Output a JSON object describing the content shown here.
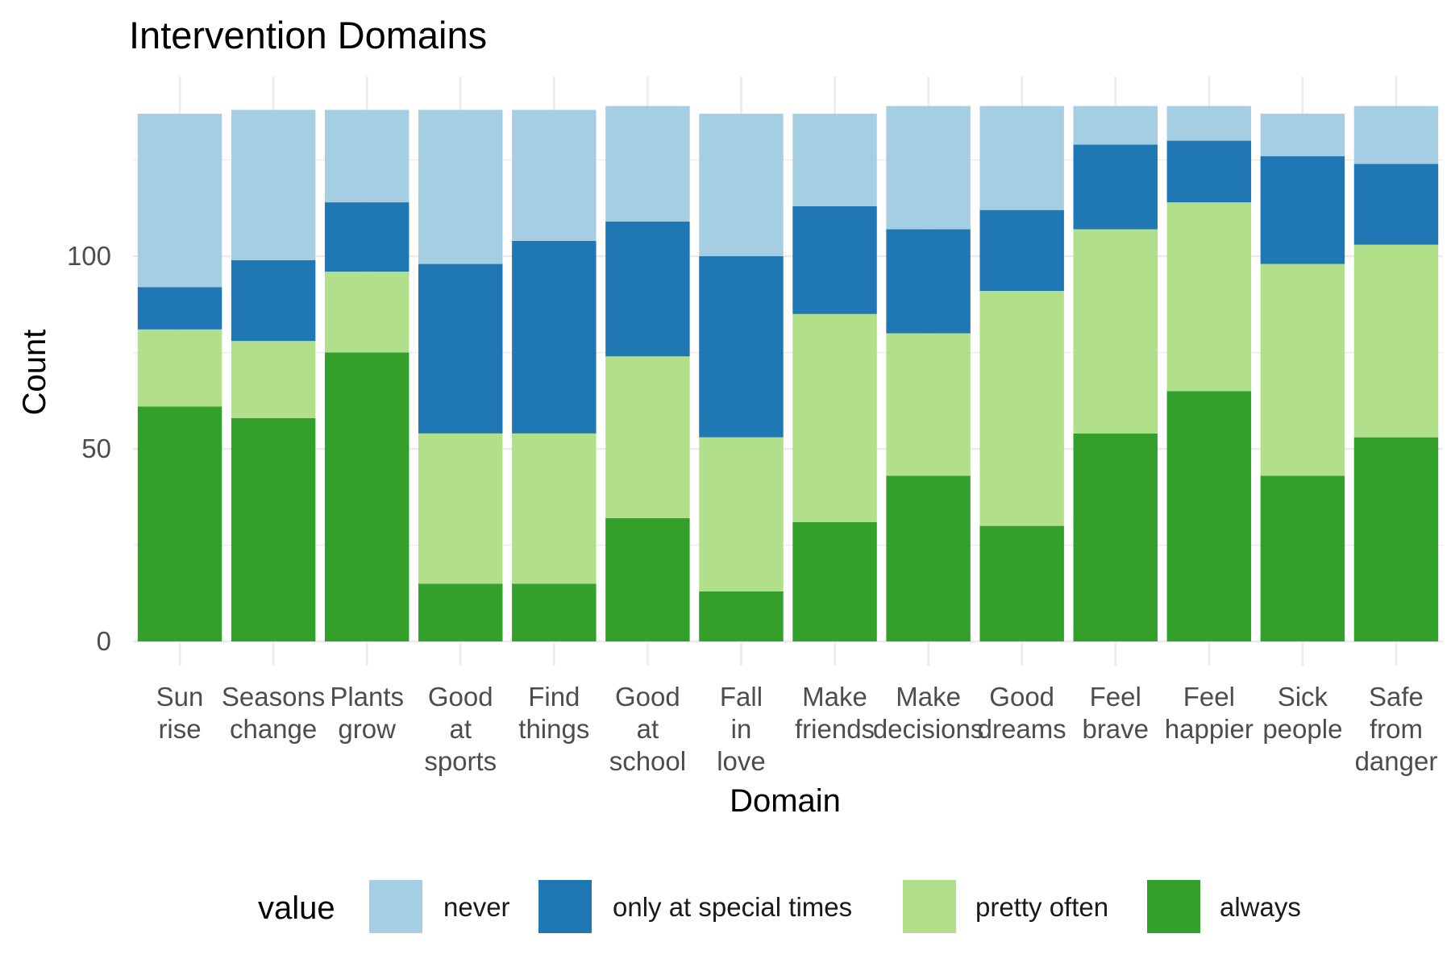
{
  "chart_data": {
    "type": "bar",
    "stacked": true,
    "title": "Intervention Domains",
    "xlabel": "Domain",
    "ylabel": "Count",
    "ylim": [
      0,
      140
    ],
    "yticks": [
      0,
      50,
      100
    ],
    "grid": true,
    "legend": {
      "title": "value",
      "position": "bottom"
    },
    "categories": [
      [
        "Sun",
        "rise"
      ],
      [
        "Seasons",
        "change"
      ],
      [
        "Plants",
        "grow"
      ],
      [
        "Good",
        "at",
        "sports"
      ],
      [
        "Find",
        "things"
      ],
      [
        "Good",
        "at",
        "school"
      ],
      [
        "Fall",
        "in",
        "love"
      ],
      [
        "Make",
        "friends"
      ],
      [
        "Make",
        "decisions"
      ],
      [
        "Good",
        "dreams"
      ],
      [
        "Feel",
        "brave"
      ],
      [
        "Feel",
        "happier"
      ],
      [
        "Sick",
        "people"
      ],
      [
        "Safe",
        "from",
        "danger"
      ]
    ],
    "series": [
      {
        "name": "always",
        "color": "#33a02c",
        "values": [
          61,
          58,
          75,
          15,
          15,
          32,
          13,
          31,
          43,
          30,
          54,
          65,
          43,
          53
        ]
      },
      {
        "name": "pretty often",
        "color": "#b2df8a",
        "values": [
          20,
          20,
          21,
          39,
          39,
          42,
          40,
          54,
          37,
          61,
          53,
          49,
          55,
          50
        ]
      },
      {
        "name": "only at special times",
        "color": "#1f78b4",
        "values": [
          11,
          21,
          18,
          44,
          50,
          35,
          47,
          28,
          27,
          21,
          22,
          16,
          28,
          21
        ]
      },
      {
        "name": "never",
        "color": "#a6cee3",
        "values": [
          45,
          39,
          24,
          40,
          34,
          30,
          37,
          24,
          32,
          27,
          10,
          9,
          11,
          15
        ]
      }
    ],
    "legend_order": [
      "never",
      "only at special times",
      "pretty often",
      "always"
    ]
  }
}
